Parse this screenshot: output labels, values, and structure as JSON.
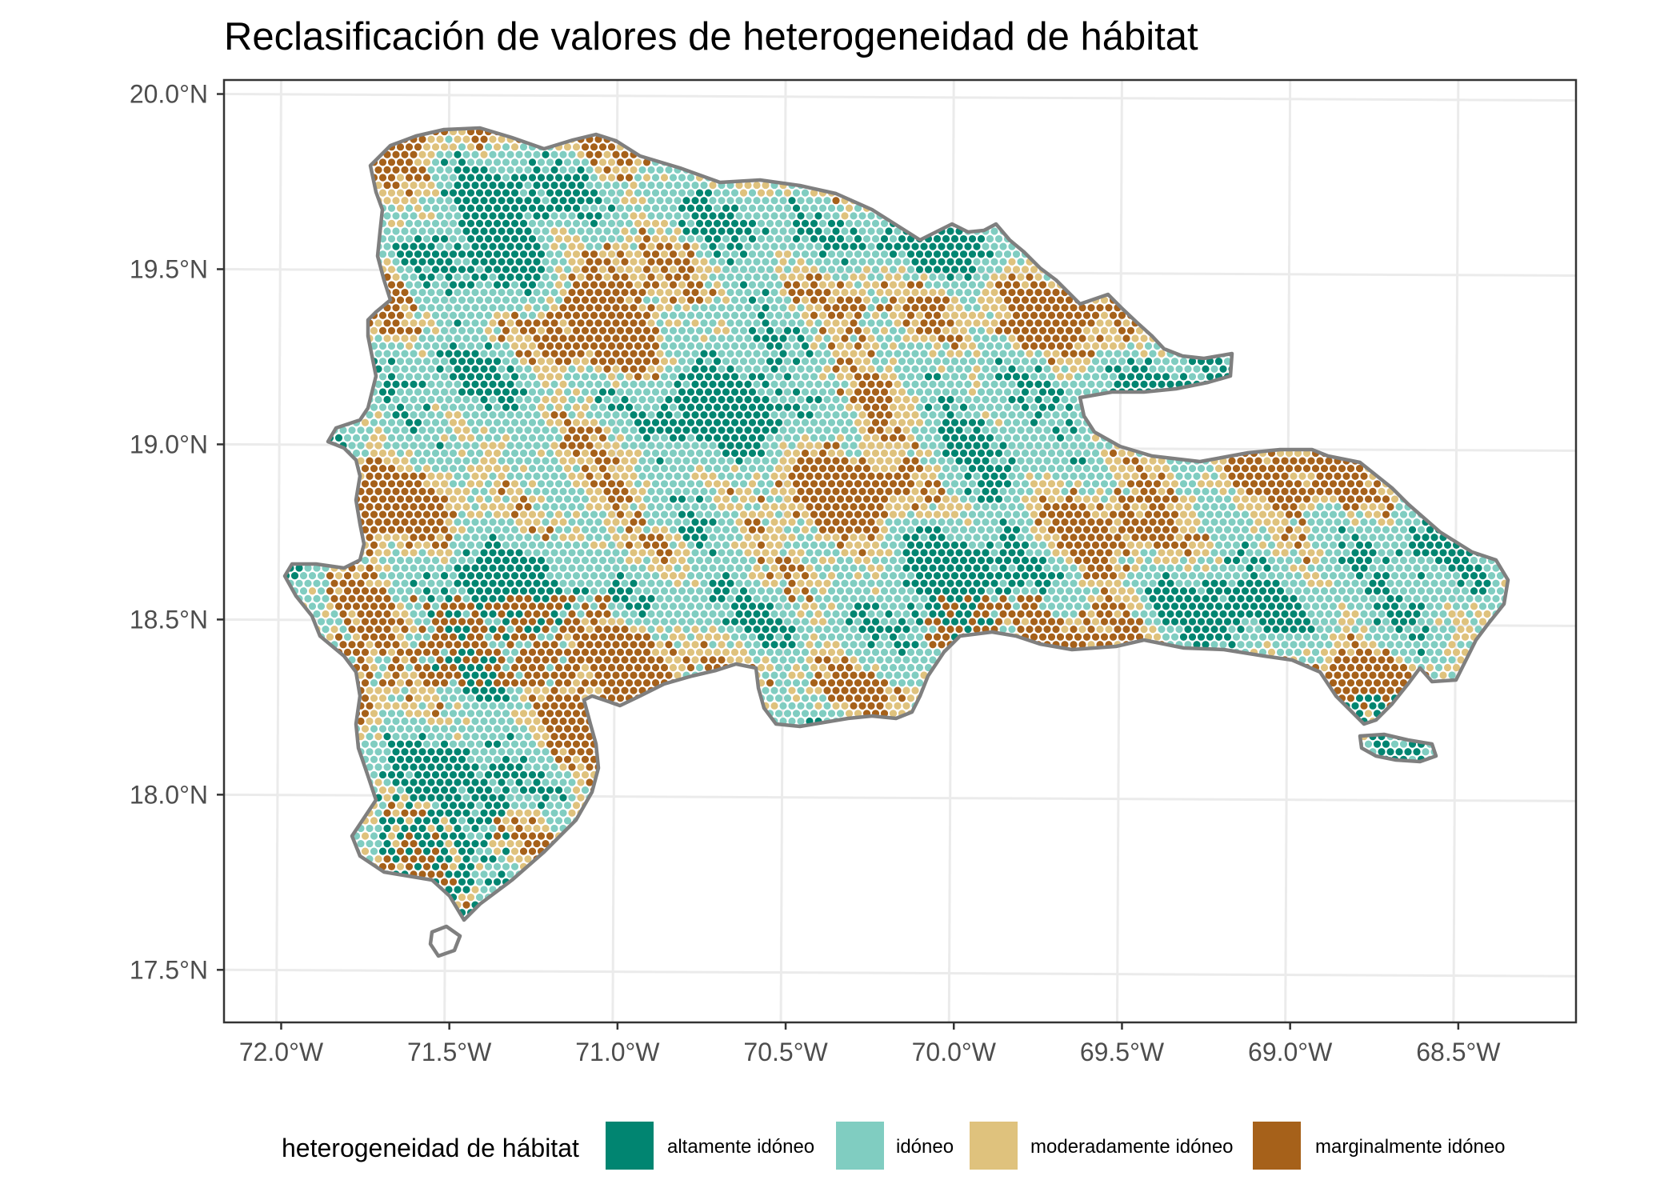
{
  "title": "Reclasificación de valores de heterogeneidad de hábitat",
  "map": {
    "lat_ticks": [
      {
        "value": 20.0,
        "label": "20.0°N"
      },
      {
        "value": 19.5,
        "label": "19.5°N"
      },
      {
        "value": 19.0,
        "label": "19.0°N"
      },
      {
        "value": 18.5,
        "label": "18.5°N"
      },
      {
        "value": 18.0,
        "label": "18.0°N"
      },
      {
        "value": 17.5,
        "label": "17.5°N"
      }
    ],
    "lon_ticks": [
      {
        "value": -72.0,
        "label": "72.0°W"
      },
      {
        "value": -71.5,
        "label": "71.5°W"
      },
      {
        "value": -71.0,
        "label": "71.0°W"
      },
      {
        "value": -70.5,
        "label": "70.5°W"
      },
      {
        "value": -70.0,
        "label": "70.0°W"
      },
      {
        "value": -69.5,
        "label": "69.5°W"
      },
      {
        "value": -69.0,
        "label": "69.0°W"
      },
      {
        "value": -68.5,
        "label": "68.5°W"
      }
    ],
    "lon_range": [
      -72.17,
      -68.15
    ],
    "lat_range": [
      17.35,
      20.04
    ],
    "grid": true,
    "coastline_color": "#7f7f7f",
    "background": "#ffffff"
  },
  "legend": {
    "title": "heterogeneidad de hábitat",
    "position": "bottom",
    "items": [
      {
        "label": "altamente idóneo",
        "color": "#018571"
      },
      {
        "label": "idóneo",
        "color": "#80cdc1"
      },
      {
        "label": "moderadamente idóneo",
        "color": "#dfc27d"
      },
      {
        "label": "marginalmente idóneo",
        "color": "#a6611a"
      }
    ]
  }
}
